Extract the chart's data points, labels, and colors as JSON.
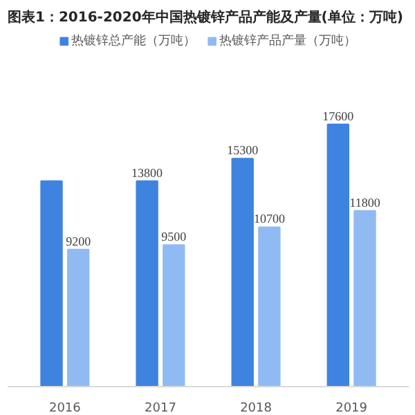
{
  "chart_data": {
    "type": "bar",
    "title": "图表1：2016-2020年中国热镀锌产品产能及产量(单位：万吨)",
    "categories": [
      "2016",
      "2017",
      "2018",
      "2019"
    ],
    "series": [
      {
        "name": "热镀锌总产能（万吨）",
        "color": "#3f83e0",
        "values": [
          13800,
          13800,
          15300,
          17600
        ],
        "value_labels": [
          null,
          "13800",
          "15300",
          "17600"
        ]
      },
      {
        "name": "热镀锌产品产量（万吨）",
        "color": "#8fbbf2",
        "values": [
          9200,
          9500,
          10700,
          11800
        ],
        "value_labels": [
          "9200",
          "9500",
          "10700",
          "11800"
        ]
      }
    ],
    "legend": "top"
  }
}
